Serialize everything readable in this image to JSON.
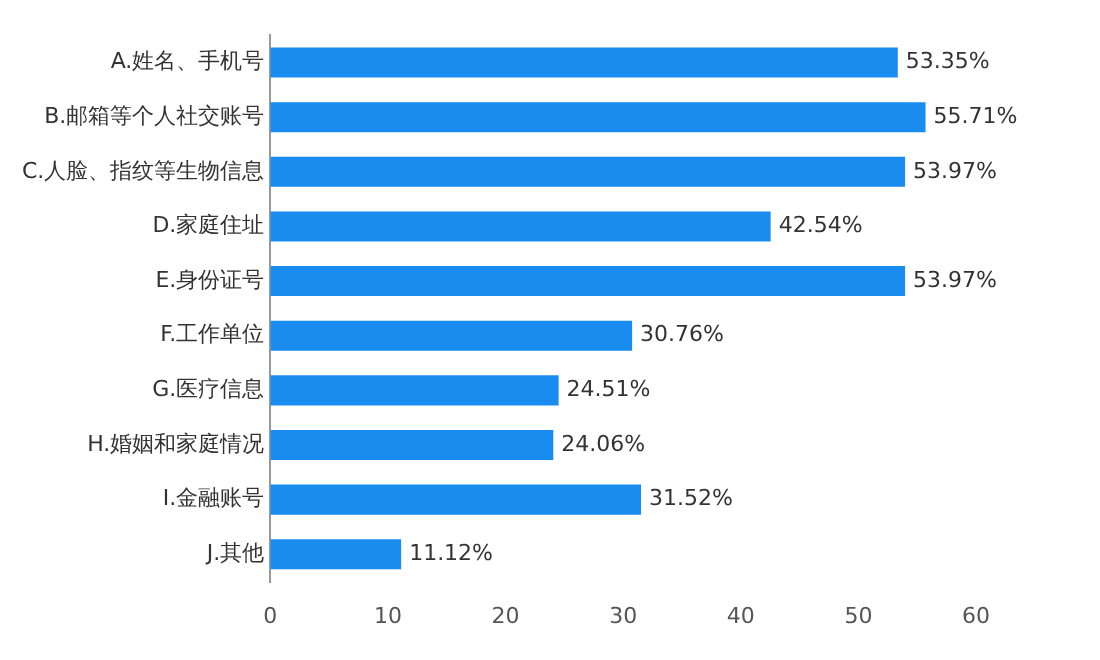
{
  "chart_data": {
    "type": "bar",
    "orientation": "horizontal",
    "categories": [
      "A.姓名、手机号",
      "B.邮箱等个人社交账号",
      "C.人脸、指纹等生物信息",
      "D.家庭住址",
      "E.身份证号",
      "F.工作单位",
      "G.医疗信息",
      "H.婚姻和家庭情况",
      "I.金融账号",
      "J.其他"
    ],
    "values": [
      53.35,
      55.71,
      53.97,
      42.54,
      53.97,
      30.76,
      24.51,
      24.06,
      31.52,
      11.12
    ],
    "value_labels": [
      "53.35%",
      "55.71%",
      "53.97%",
      "42.54%",
      "53.97%",
      "30.76%",
      "24.51%",
      "24.06%",
      "31.52%",
      "11.12%"
    ],
    "color": "#1a8cf0",
    "xlim": [
      0,
      60
    ],
    "xticks": [
      0,
      10,
      20,
      30,
      40,
      50,
      60
    ],
    "grid": false,
    "legend": false
  }
}
